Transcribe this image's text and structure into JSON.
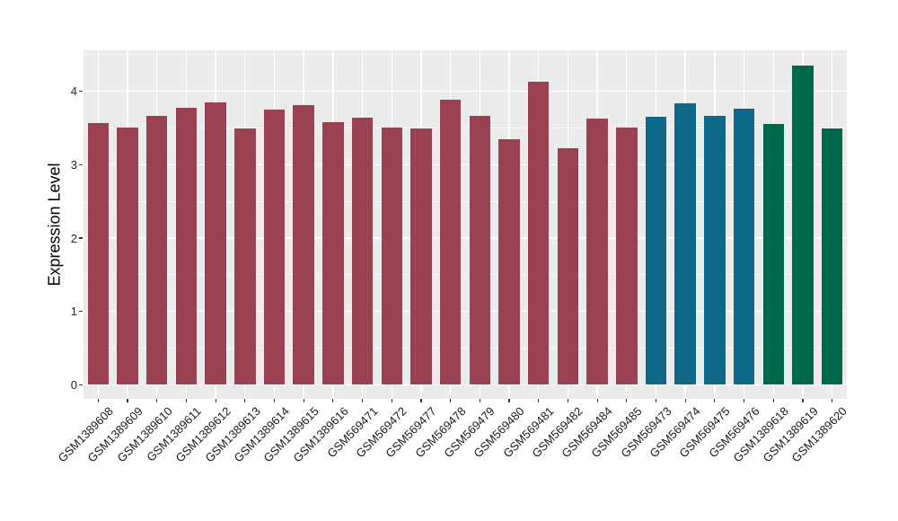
{
  "chart_data": {
    "type": "bar",
    "title": "",
    "xlabel": "",
    "ylabel": "Expression Level",
    "categories": [
      "GSM1389608",
      "GSM1389609",
      "GSM1389610",
      "GSM1389611",
      "GSM1389612",
      "GSM1389613",
      "GSM1389614",
      "GSM1389615",
      "GSM1389616",
      "GSM569471",
      "GSM569472",
      "GSM569477",
      "GSM569478",
      "GSM569479",
      "GSM569480",
      "GSM569481",
      "GSM569482",
      "GSM569484",
      "GSM569485",
      "GSM569473",
      "GSM569474",
      "GSM569475",
      "GSM569476",
      "GSM1389618",
      "GSM1389619",
      "GSM1389620"
    ],
    "values": [
      3.57,
      3.51,
      3.67,
      3.78,
      3.85,
      3.5,
      3.75,
      3.81,
      3.58,
      3.64,
      3.51,
      3.49,
      3.89,
      3.67,
      3.35,
      4.13,
      3.22,
      3.63,
      3.51,
      3.65,
      3.84,
      3.67,
      3.76,
      3.56,
      4.35,
      3.49
    ],
    "bar_colors": [
      "#9B4252",
      "#9B4252",
      "#9B4252",
      "#9B4252",
      "#9B4252",
      "#9B4252",
      "#9B4252",
      "#9B4252",
      "#9B4252",
      "#9B4252",
      "#9B4252",
      "#9B4252",
      "#9B4252",
      "#9B4252",
      "#9B4252",
      "#9B4252",
      "#9B4252",
      "#9B4252",
      "#9B4252",
      "#0E6887",
      "#0E6887",
      "#0E6887",
      "#0E6887",
      "#00684A",
      "#00684A",
      "#00684A"
    ],
    "palette": {
      "maroon": "#9B4252",
      "blue": "#0E6887",
      "green": "#00684A"
    },
    "yticks": [
      0,
      1,
      2,
      3,
      4
    ],
    "ylim": [
      0,
      4.56
    ],
    "minor_tick_step": 0.5,
    "grid": true,
    "legend": "none",
    "panel_bg": "#EBEBEB",
    "grid_color": "#FFFFFF"
  }
}
